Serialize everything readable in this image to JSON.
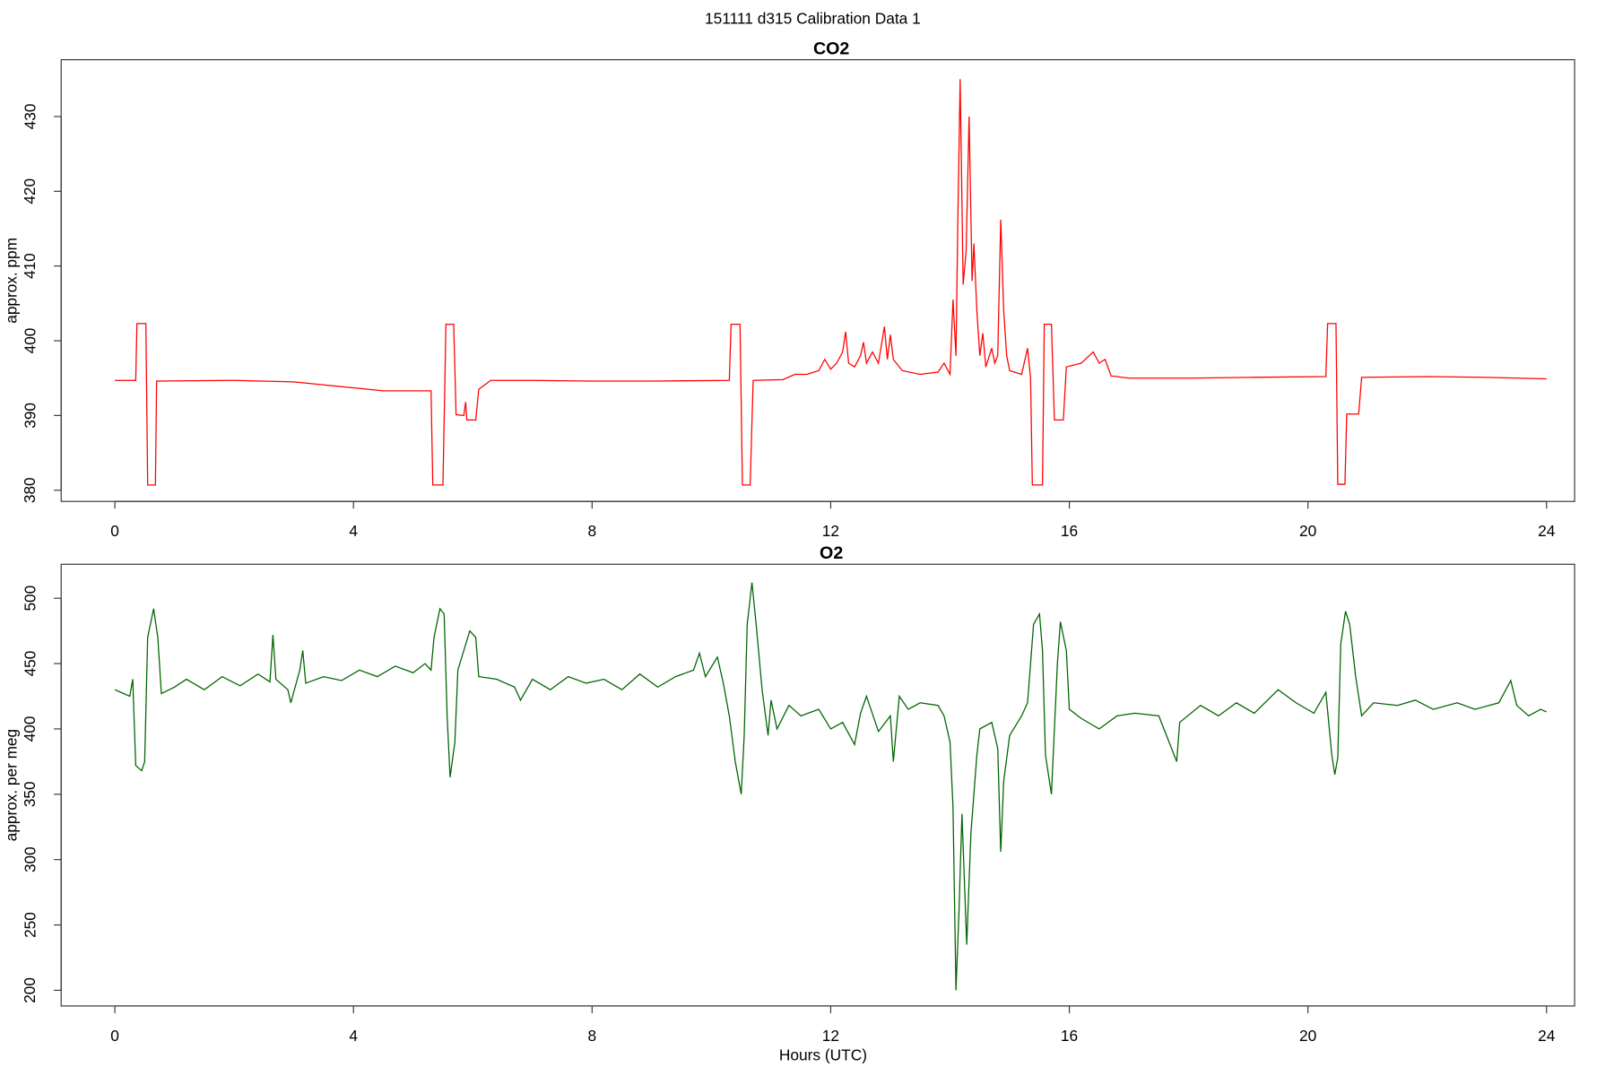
{
  "title": "151111   d315   Calibration Data 1",
  "chart_data": [
    {
      "type": "line",
      "title": "CO2",
      "y_label": "approx. ppm",
      "color": "#ff0000",
      "xlim": [
        -0.9,
        24.47
      ],
      "xticks": [
        0,
        4,
        8,
        12,
        16,
        20,
        24
      ],
      "ylim": [
        378.5,
        437.6
      ],
      "yticks": [
        380,
        390,
        400,
        410,
        420,
        430
      ],
      "x": [
        0.0,
        0.35,
        0.37,
        0.52,
        0.55,
        0.68,
        0.7,
        2,
        3,
        3.5,
        4,
        4.5,
        5.3,
        5.33,
        5.5,
        5.55,
        5.68,
        5.72,
        5.85,
        5.88,
        5.9,
        6.05,
        6.1,
        6.3,
        7,
        8,
        9,
        10.3,
        10.33,
        10.48,
        10.52,
        10.65,
        10.7,
        11.2,
        11.4,
        11.6,
        11.8,
        11.9,
        12.0,
        12.1,
        12.2,
        12.25,
        12.3,
        12.4,
        12.5,
        12.55,
        12.6,
        12.7,
        12.8,
        12.9,
        12.95,
        13.0,
        13.05,
        13.2,
        13.5,
        13.8,
        13.9,
        14.0,
        14.05,
        14.1,
        14.13,
        14.17,
        14.22,
        14.27,
        14.32,
        14.37,
        14.4,
        14.45,
        14.5,
        14.55,
        14.6,
        14.7,
        14.75,
        14.8,
        14.85,
        14.9,
        14.95,
        15.0,
        15.2,
        15.3,
        15.35,
        15.38,
        15.55,
        15.58,
        15.7,
        15.75,
        15.9,
        15.95,
        16.2,
        16.4,
        16.5,
        16.6,
        16.7,
        17,
        18,
        19,
        20.3,
        20.33,
        20.47,
        20.5,
        20.62,
        20.65,
        20.85,
        20.9,
        22,
        23,
        24
      ],
      "values": [
        394.7,
        394.7,
        402.3,
        402.3,
        380.7,
        380.7,
        394.6,
        394.7,
        394.5,
        394.1,
        393.7,
        393.3,
        393.3,
        380.7,
        380.7,
        402.2,
        402.2,
        390.1,
        390.0,
        391.8,
        389.4,
        389.4,
        393.5,
        394.7,
        394.7,
        394.6,
        394.6,
        394.7,
        402.2,
        402.2,
        380.7,
        380.7,
        394.7,
        394.8,
        395.5,
        395.5,
        396,
        397.5,
        396.2,
        397,
        398.5,
        401.2,
        397,
        396.5,
        398,
        399.8,
        397,
        398.5,
        397,
        401.9,
        397.5,
        400.8,
        397.5,
        396,
        395.5,
        395.8,
        397,
        395.5,
        405.5,
        398,
        415.6,
        435,
        407.5,
        412,
        430,
        408,
        413,
        404,
        398,
        401,
        396.5,
        399,
        397,
        398,
        416.2,
        404,
        398,
        396,
        395.5,
        399,
        395,
        380.7,
        380.7,
        402.2,
        402.2,
        389.4,
        389.4,
        396.5,
        397,
        398.5,
        397,
        397.5,
        395.3,
        395,
        395,
        395.1,
        395.2,
        402.3,
        402.3,
        380.8,
        380.8,
        390.2,
        390.2,
        395.1,
        395.2,
        395.1,
        394.9
      ]
    },
    {
      "type": "line",
      "title": "O2",
      "y_label": "approx. per meg",
      "x_label": "Hours (UTC)",
      "color": "#006400",
      "xlim": [
        -0.9,
        24.47
      ],
      "xticks": [
        0,
        4,
        8,
        12,
        16,
        20,
        24
      ],
      "ylim": [
        188,
        526
      ],
      "yticks": [
        200,
        250,
        300,
        350,
        400,
        450,
        500
      ],
      "x": [
        0,
        0.1,
        0.25,
        0.3,
        0.35,
        0.45,
        0.5,
        0.55,
        0.65,
        0.72,
        0.78,
        1.0,
        1.2,
        1.5,
        1.8,
        2.1,
        2.4,
        2.6,
        2.65,
        2.7,
        2.9,
        2.95,
        3.1,
        3.15,
        3.2,
        3.5,
        3.8,
        4.1,
        4.4,
        4.7,
        5.0,
        5.2,
        5.3,
        5.35,
        5.45,
        5.52,
        5.57,
        5.62,
        5.7,
        5.75,
        5.85,
        5.95,
        6.05,
        6.1,
        6.4,
        6.7,
        6.8,
        7.0,
        7.3,
        7.6,
        7.9,
        8.2,
        8.5,
        8.8,
        9.1,
        9.4,
        9.7,
        9.8,
        9.9,
        10.1,
        10.2,
        10.3,
        10.4,
        10.5,
        10.55,
        10.6,
        10.68,
        10.75,
        10.85,
        10.95,
        11.0,
        11.1,
        11.3,
        11.5,
        11.8,
        12.0,
        12.2,
        12.4,
        12.5,
        12.6,
        12.8,
        13.0,
        13.05,
        13.15,
        13.3,
        13.5,
        13.8,
        13.9,
        14.0,
        14.05,
        14.1,
        14.15,
        14.2,
        14.28,
        14.35,
        14.45,
        14.5,
        14.7,
        14.8,
        14.85,
        14.9,
        15.0,
        15.2,
        15.3,
        15.4,
        15.5,
        15.55,
        15.6,
        15.7,
        15.8,
        15.85,
        15.95,
        16.0,
        16.2,
        16.5,
        16.8,
        17.1,
        17.5,
        17.8,
        17.85,
        18.2,
        18.5,
        18.8,
        19.1,
        19.5,
        19.8,
        20.1,
        20.3,
        20.4,
        20.45,
        20.5,
        20.55,
        20.63,
        20.7,
        20.8,
        20.9,
        21.1,
        21.5,
        21.8,
        22.1,
        22.5,
        22.8,
        23.2,
        23.4,
        23.5,
        23.7,
        23.9,
        24.0
      ],
      "values": [
        430,
        428,
        425,
        438,
        372,
        368,
        375,
        470,
        492,
        470,
        427,
        432,
        438,
        430,
        440,
        433,
        442,
        436,
        472,
        438,
        430,
        420,
        445,
        460,
        435,
        440,
        437,
        445,
        440,
        448,
        443,
        450,
        445,
        470,
        492,
        488,
        410,
        363,
        390,
        445,
        460,
        475,
        470,
        440,
        438,
        432,
        422,
        438,
        430,
        440,
        435,
        438,
        430,
        442,
        432,
        440,
        445,
        458,
        440,
        455,
        435,
        410,
        375,
        350,
        395,
        480,
        512,
        480,
        430,
        395,
        422,
        400,
        418,
        410,
        415,
        400,
        405,
        388,
        412,
        425,
        398,
        410,
        375,
        425,
        415,
        420,
        418,
        410,
        390,
        340,
        200,
        260,
        335,
        235,
        320,
        380,
        400,
        405,
        385,
        306,
        360,
        395,
        410,
        420,
        480,
        488,
        460,
        380,
        350,
        450,
        482,
        460,
        415,
        408,
        400,
        410,
        412,
        410,
        375,
        405,
        418,
        410,
        420,
        412,
        430,
        420,
        412,
        428,
        380,
        365,
        378,
        465,
        490,
        480,
        440,
        410,
        420,
        418,
        422,
        415,
        420,
        415,
        420,
        437,
        418,
        410,
        415,
        413
      ]
    }
  ]
}
